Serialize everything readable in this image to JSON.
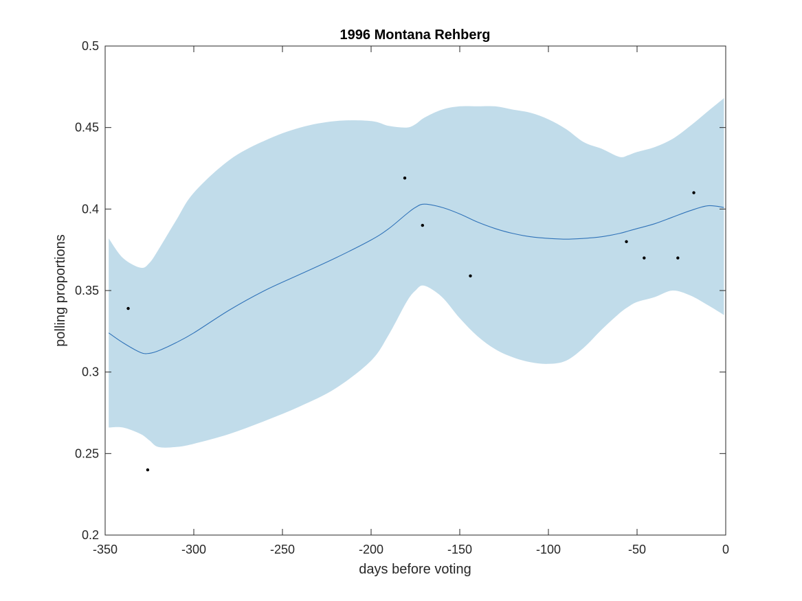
{
  "chart_data": {
    "type": "line",
    "title": "1996 Montana Rehberg",
    "xlabel": "days before voting",
    "ylabel": "polling proportions",
    "xlim": [
      -350,
      0
    ],
    "ylim": [
      0.2,
      0.5
    ],
    "xticks": [
      -350,
      -300,
      -250,
      -200,
      -150,
      -100,
      -50,
      0
    ],
    "xtick_labels": [
      "-350",
      "-300",
      "-250",
      "-200",
      "-150",
      "-100",
      "-50",
      "0"
    ],
    "yticks": [
      0.2,
      0.25,
      0.3,
      0.35,
      0.4,
      0.45,
      0.5
    ],
    "ytick_labels": [
      "0.2",
      "0.25",
      "0.3",
      "0.35",
      "0.4",
      "0.45",
      "0.5"
    ],
    "grid": false,
    "colors": {
      "line": "#2f72b8",
      "band": "#c1dcea",
      "points": "#000000",
      "axes": "#262626"
    },
    "series": [
      {
        "kind": "band",
        "x": [
          -348,
          -340,
          -330,
          -325,
          -320,
          -310,
          -300,
          -280,
          -260,
          -240,
          -220,
          -200,
          -190,
          -180,
          -175,
          -170,
          -160,
          -150,
          -140,
          -130,
          -120,
          -110,
          -100,
          -90,
          -80,
          -70,
          -60,
          -55,
          -50,
          -40,
          -30,
          -20,
          -10,
          -1
        ],
        "upper": [
          0.382,
          0.37,
          0.364,
          0.367,
          0.375,
          0.393,
          0.41,
          0.43,
          0.442,
          0.45,
          0.454,
          0.454,
          0.451,
          0.45,
          0.452,
          0.456,
          0.461,
          0.463,
          0.463,
          0.463,
          0.461,
          0.459,
          0.455,
          0.449,
          0.441,
          0.437,
          0.432,
          0.433,
          0.435,
          0.438,
          0.443,
          0.451,
          0.46,
          0.468
        ],
        "lower": [
          0.266,
          0.266,
          0.262,
          0.258,
          0.254,
          0.254,
          0.256,
          0.262,
          0.27,
          0.279,
          0.29,
          0.307,
          0.323,
          0.343,
          0.35,
          0.353,
          0.346,
          0.333,
          0.322,
          0.314,
          0.309,
          0.306,
          0.305,
          0.307,
          0.315,
          0.326,
          0.336,
          0.34,
          0.343,
          0.346,
          0.35,
          0.347,
          0.341,
          0.335
        ]
      },
      {
        "kind": "line",
        "x": [
          -348,
          -340,
          -330,
          -325,
          -320,
          -310,
          -300,
          -280,
          -260,
          -240,
          -220,
          -200,
          -190,
          -180,
          -175,
          -170,
          -160,
          -150,
          -140,
          -130,
          -120,
          -110,
          -100,
          -90,
          -80,
          -70,
          -60,
          -55,
          -50,
          -40,
          -30,
          -20,
          -10,
          -1
        ],
        "y": [
          0.324,
          0.318,
          0.312,
          0.3115,
          0.313,
          0.318,
          0.324,
          0.338,
          0.35,
          0.36,
          0.37,
          0.381,
          0.388,
          0.397,
          0.401,
          0.403,
          0.401,
          0.397,
          0.392,
          0.388,
          0.385,
          0.383,
          0.382,
          0.3815,
          0.382,
          0.383,
          0.385,
          0.3865,
          0.388,
          0.391,
          0.395,
          0.399,
          0.402,
          0.401
        ]
      },
      {
        "kind": "scatter",
        "x": [
          -337,
          -326,
          -181,
          -171,
          -144,
          -56,
          -46,
          -27,
          -18
        ],
        "y": [
          0.339,
          0.24,
          0.419,
          0.39,
          0.359,
          0.38,
          0.37,
          0.37,
          0.41
        ]
      }
    ]
  }
}
